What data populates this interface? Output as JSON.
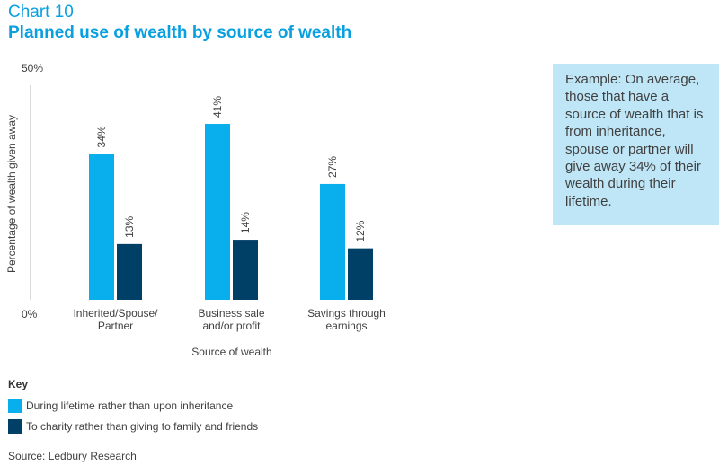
{
  "header": {
    "chart_number": "Chart 10",
    "title": "Planned use of wealth by source of wealth"
  },
  "example_text": "Example: On average, those that have a source of wealth that is from inheritance, spouse or partner will give away 34% of their wealth during their lifetime.",
  "key": {
    "title": "Key"
  },
  "source": "Source: Ledbury Research",
  "colors": {
    "lifetime": "#09aeec",
    "charity": "#003f66",
    "accent": "#0aa0e0",
    "example_bg": "#bfe6f7"
  },
  "chart_data": {
    "type": "bar",
    "title": "Planned use of wealth by source of wealth",
    "xlabel": "Source of wealth",
    "ylabel": "Percentage of wealth given away",
    "ylim": [
      0,
      50
    ],
    "y_tick_labels": [
      "0%",
      "50%"
    ],
    "categories": [
      [
        "Inherited/Spouse/",
        "Partner"
      ],
      [
        "Business sale",
        "and/or profit"
      ],
      [
        "Savings through",
        "earnings"
      ]
    ],
    "series": [
      {
        "name": "During lifetime rather than upon inheritance",
        "values": [
          34,
          41,
          27
        ],
        "labels": [
          "34%",
          "41%",
          "27%"
        ],
        "color": "#09aeec"
      },
      {
        "name": "To charity rather than giving to family and friends",
        "values": [
          13,
          14,
          12
        ],
        "labels": [
          "13%",
          "14%",
          "12%"
        ],
        "color": "#003f66"
      }
    ],
    "grid": false,
    "legend": "bottom-left"
  }
}
